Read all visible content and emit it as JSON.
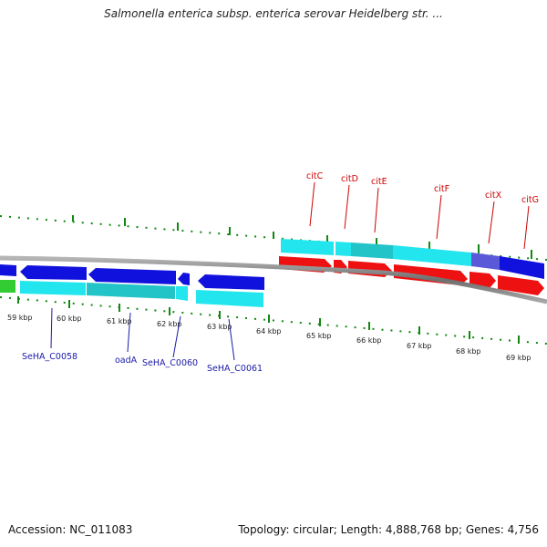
{
  "title": "Salmonella enterica subsp. enterica serovar Heidelberg str. ...",
  "footer": {
    "accession": "Accession: NC_011083",
    "summary": "Topology: circular; Length: 4,888,768 bp; Genes: 4,756"
  },
  "ruler": {
    "labels": [
      "59 kbp",
      "60 kbp",
      "61 kbp",
      "62 kbp",
      "63 kbp",
      "64 kbp",
      "65 kbp",
      "66 kbp",
      "67 kbp",
      "68 kbp",
      "69 kbp"
    ]
  },
  "genes_forward": [
    {
      "name": "citC",
      "color": "#cc0000"
    },
    {
      "name": "citD",
      "color": "#cc0000"
    },
    {
      "name": "citE",
      "color": "#cc0000"
    },
    {
      "name": "citF",
      "color": "#cc0000"
    },
    {
      "name": "citX",
      "color": "#cc0000"
    },
    {
      "name": "citG",
      "color": "#cc0000"
    }
  ],
  "genes_reverse": [
    {
      "name": "SeHA_C0058",
      "color": "#1a1aa8"
    },
    {
      "name": "oadA",
      "color": "#1a1aa8"
    },
    {
      "name": "SeHA_C0060",
      "color": "#1a1aa8"
    },
    {
      "name": "SeHA_C0061",
      "color": "#1a1aa8"
    }
  ],
  "colors": {
    "forward_gene": "#ee1111",
    "reverse_gene": "#1111dd",
    "feature_cyan": "#22e5ee",
    "feature_teal": "#22c4c8",
    "feature_green": "#33cc33",
    "tick": "#118811",
    "backbone": "#808080"
  }
}
